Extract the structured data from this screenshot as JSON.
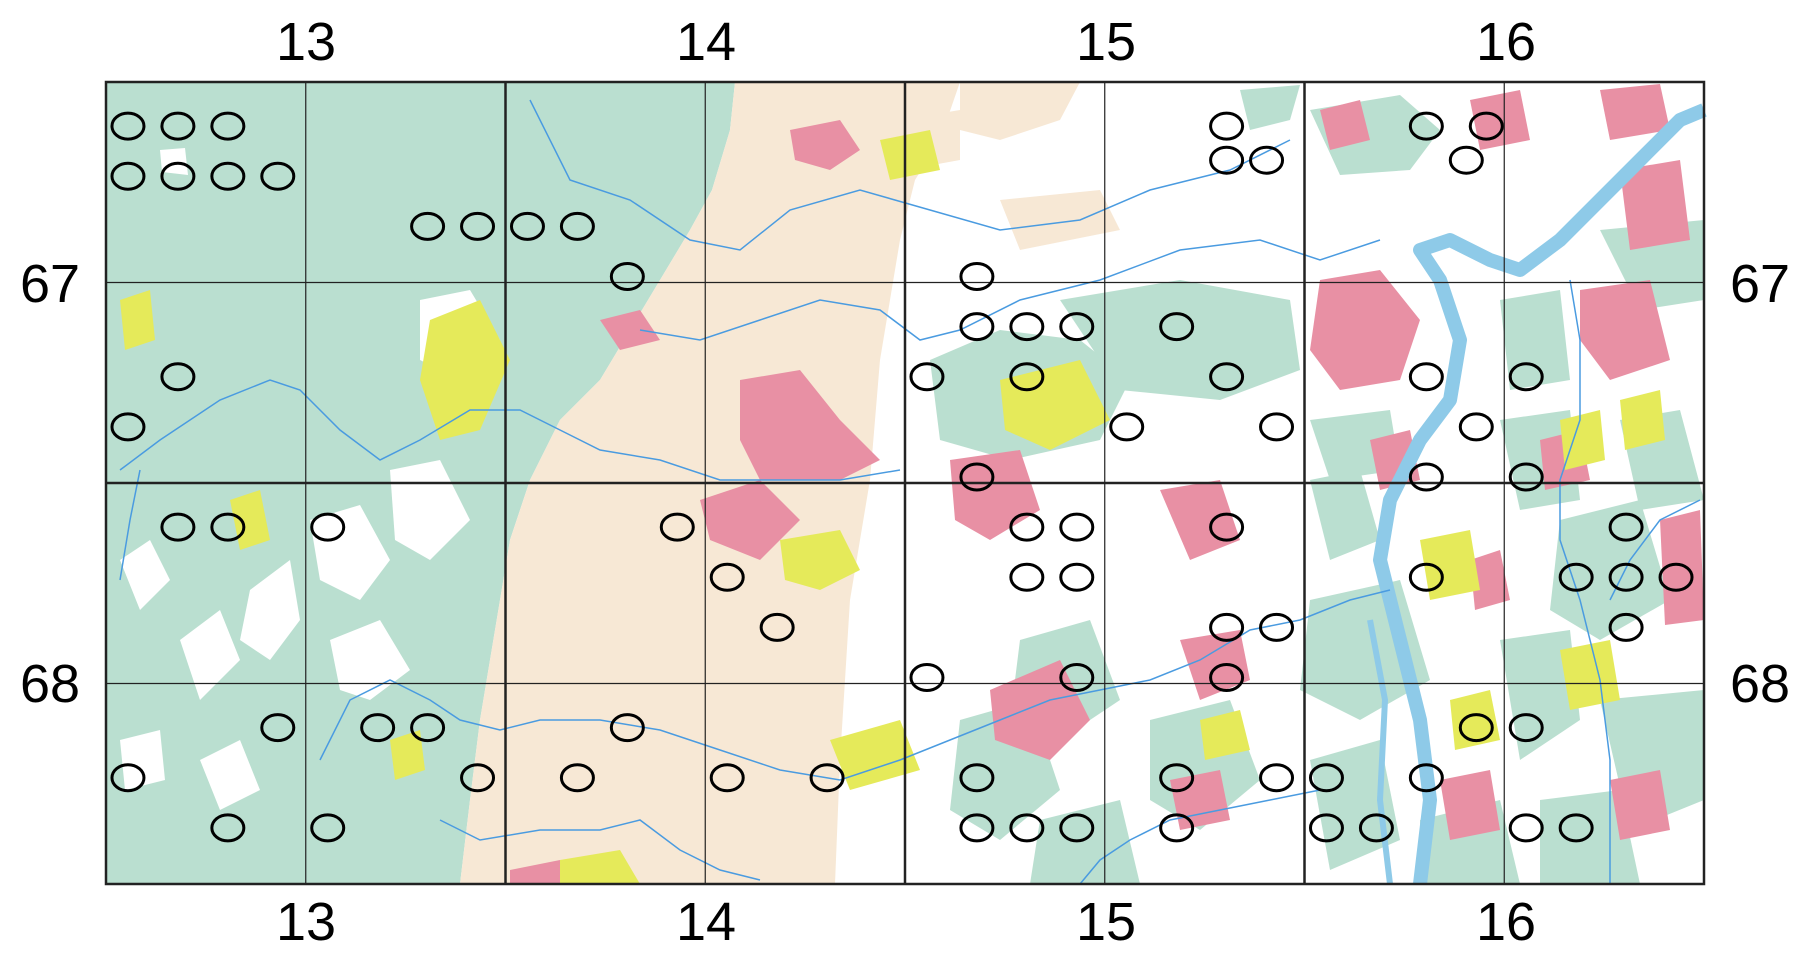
{
  "labels": {
    "columns_top": [
      "13",
      "14",
      "15",
      "16"
    ],
    "columns_bottom": [
      "13",
      "14",
      "15",
      "16"
    ],
    "rows_left": [
      "67",
      "68"
    ],
    "rows_right": [
      "67",
      "68"
    ]
  },
  "colors": {
    "forest": "#badfd0",
    "urban": "#e890a4",
    "field": "#f7e8d5",
    "meadow": "#e5ea5a",
    "open": "#ffffff",
    "water": "#8ecae8",
    "grid": "#222222",
    "marker": "#000000"
  },
  "grid": {
    "cols": 8,
    "rows": 4
  },
  "markers": [
    [
      0.61,
      0.22
    ],
    [
      5.61,
      0.22
    ],
    [
      6.61,
      0.22
    ],
    [
      6.91,
      0.22
    ],
    [
      6.81,
      0.39
    ],
    [
      5.81,
      0.39
    ],
    [
      5.61,
      0.39
    ],
    [
      0.36,
      0.22
    ],
    [
      0.11,
      0.22
    ],
    [
      0.11,
      0.47
    ],
    [
      0.36,
      0.47
    ],
    [
      0.61,
      0.47
    ],
    [
      0.86,
      0.47
    ],
    [
      1.61,
      0.72
    ],
    [
      1.86,
      0.72
    ],
    [
      2.11,
      0.72
    ],
    [
      2.36,
      0.72
    ],
    [
      2.61,
      0.97
    ],
    [
      4.36,
      0.97
    ],
    [
      4.61,
      1.22
    ],
    [
      4.36,
      1.22
    ],
    [
      4.86,
      1.22
    ],
    [
      5.36,
      1.22
    ],
    [
      0.36,
      1.47
    ],
    [
      4.11,
      1.47
    ],
    [
      4.61,
      1.47
    ],
    [
      5.61,
      1.47
    ],
    [
      6.61,
      1.47
    ],
    [
      7.11,
      1.47
    ],
    [
      0.11,
      1.72
    ],
    [
      6.86,
      1.72
    ],
    [
      5.11,
      1.72
    ],
    [
      5.86,
      1.72
    ],
    [
      4.36,
      1.97
    ],
    [
      6.61,
      1.97
    ],
    [
      7.11,
      1.97
    ],
    [
      0.36,
      2.22
    ],
    [
      0.61,
      2.22
    ],
    [
      4.61,
      2.22
    ],
    [
      4.86,
      2.22
    ],
    [
      2.86,
      2.22
    ],
    [
      4.61,
      2.47
    ],
    [
      4.86,
      2.47
    ],
    [
      5.86,
      2.72
    ],
    [
      5.61,
      2.72
    ],
    [
      4.86,
      2.97
    ],
    [
      5.61,
      2.97
    ],
    [
      4.11,
      2.97
    ],
    [
      7.11,
      3.22
    ],
    [
      7.11,
      3.72
    ],
    [
      6.61,
      3.47
    ],
    [
      5.86,
      3.47
    ],
    [
      5.36,
      3.47
    ],
    [
      6.11,
      3.47
    ],
    [
      6.86,
      3.22
    ],
    [
      0.11,
      3.47
    ],
    [
      0.61,
      3.72
    ],
    [
      1.11,
      3.72
    ],
    [
      1.86,
      3.47
    ],
    [
      2.36,
      3.47
    ],
    [
      3.11,
      3.47
    ],
    [
      3.61,
      3.47
    ],
    [
      4.36,
      3.47
    ],
    [
      4.61,
      3.72
    ],
    [
      4.36,
      3.72
    ],
    [
      4.86,
      3.72
    ],
    [
      5.36,
      3.72
    ],
    [
      6.36,
      3.72
    ],
    [
      6.11,
      3.72
    ],
    [
      7.36,
      3.72
    ],
    [
      0.86,
      3.22
    ],
    [
      1.11,
      2.22
    ],
    [
      1.36,
      3.22
    ],
    [
      1.61,
      3.22
    ],
    [
      2.61,
      3.22
    ],
    [
      3.11,
      2.47
    ],
    [
      3.36,
      2.72
    ],
    [
      5.61,
      2.22
    ],
    [
      7.61,
      2.22
    ],
    [
      7.61,
      2.72
    ],
    [
      6.61,
      2.47
    ],
    [
      7.36,
      2.47
    ],
    [
      7.61,
      2.47
    ],
    [
      7.86,
      2.47
    ]
  ]
}
